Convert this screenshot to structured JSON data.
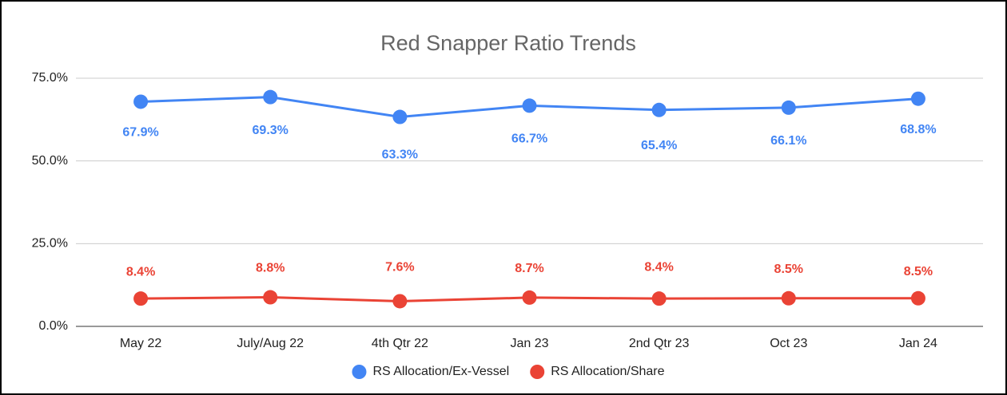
{
  "chart_data": {
    "type": "line",
    "title": "Red Snapper Ratio Trends",
    "categories": [
      "May 22",
      "July/Aug 22",
      "4th Qtr 22",
      "Jan 23",
      "2nd Qtr 23",
      "Oct 23",
      "Jan 24"
    ],
    "series": [
      {
        "name": "RS Allocation/Ex-Vessel",
        "color": "#4285f4",
        "values": [
          67.9,
          69.3,
          63.3,
          66.7,
          65.4,
          66.1,
          68.8
        ],
        "value_labels": [
          "67.9%",
          "69.3%",
          "63.3%",
          "66.7%",
          "65.4%",
          "66.1%",
          "68.8%"
        ]
      },
      {
        "name": "RS Allocation/Share",
        "color": "#ea4335",
        "values": [
          8.4,
          8.8,
          7.6,
          8.7,
          8.4,
          8.5,
          8.5
        ],
        "value_labels": [
          "8.4%",
          "8.8%",
          "7.6%",
          "8.7%",
          "8.4%",
          "8.5%",
          "8.5%"
        ]
      }
    ],
    "ylim": [
      0,
      75
    ],
    "yticks": [
      {
        "value": 0,
        "label": "0.0%"
      },
      {
        "value": 25,
        "label": "25.0%"
      },
      {
        "value": 50,
        "label": "50.0%"
      },
      {
        "value": 75,
        "label": "75.0%"
      }
    ],
    "grid": true,
    "legend": "bottom"
  }
}
